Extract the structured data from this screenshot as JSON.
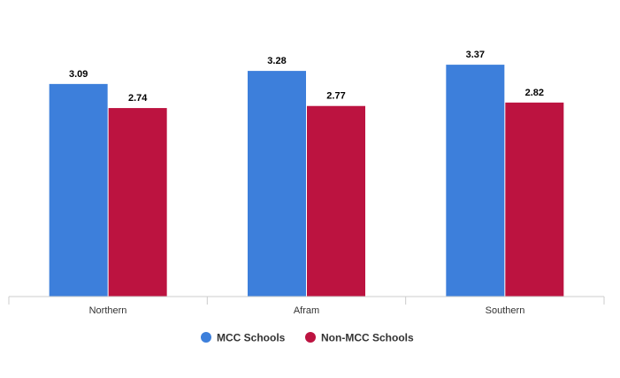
{
  "chart_data": {
    "type": "bar",
    "title": "",
    "xlabel": "",
    "ylabel": "",
    "categories": [
      "Northern",
      "Afram",
      "Southern"
    ],
    "ylim": [
      0,
      3.5
    ],
    "grid": false,
    "legend_position": "bottom",
    "series": [
      {
        "name": "MCC Schools",
        "color": "#3d7fdb",
        "values": [
          3.09,
          3.28,
          3.37
        ],
        "labels": [
          "3.09",
          "3.28",
          "3.37"
        ]
      },
      {
        "name": "Non-MCC Schools",
        "color": "#bc1340",
        "values": [
          2.74,
          2.77,
          2.82
        ],
        "labels": [
          "2.74",
          "2.77",
          "2.82"
        ]
      }
    ]
  }
}
